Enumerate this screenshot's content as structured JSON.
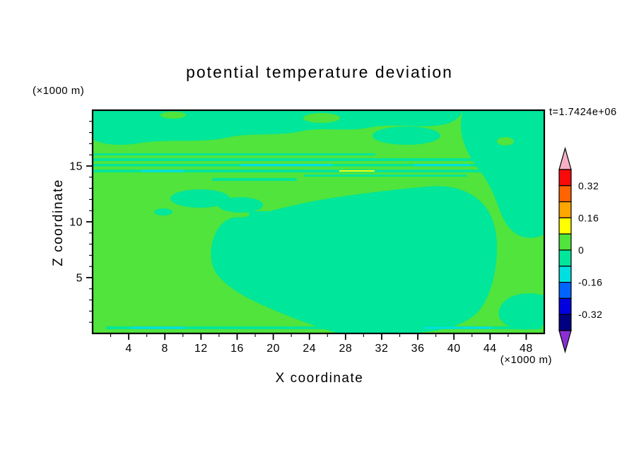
{
  "title": "potential temperature deviation",
  "time_label": "t=1.7424e+06",
  "axes": {
    "x": {
      "label": "X coordinate",
      "unit": "(×1000 m)",
      "range": [
        0,
        50
      ],
      "ticks": [
        "4",
        "8",
        "12",
        "16",
        "20",
        "24",
        "28",
        "32",
        "36",
        "40",
        "44",
        "48"
      ],
      "minor_step": 2
    },
    "y": {
      "label": "Z coordinate",
      "unit": "(×1000 m)",
      "range": [
        0,
        20
      ],
      "ticks": [
        "5",
        "10",
        "15"
      ],
      "minor_step": 1
    }
  },
  "palette": {
    "field-bg": "#50E43C",
    "field-neg": "#00E69A",
    "field-cyan": "#00E0E0",
    "field-yellow": "#FFFF00",
    "plot-border": "#000000"
  },
  "colorbar": {
    "over_color": "#F6AFC4",
    "under_color": "#8A30D0",
    "segments": [
      {
        "min": "0.32",
        "max": "0.4",
        "color": "#FA0A0A"
      },
      {
        "min": "0.24",
        "max": "0.32",
        "color": "#FF6400"
      },
      {
        "min": "0.16",
        "max": "0.24",
        "color": "#FFA500"
      },
      {
        "min": "0.08",
        "max": "0.16",
        "color": "#FFFF00"
      },
      {
        "min": "0",
        "max": "0.08",
        "color": "#50E43C"
      },
      {
        "min": "-0.08",
        "max": "0",
        "color": "#00E69A"
      },
      {
        "min": "-0.16",
        "max": "-0.08",
        "color": "#00E0E0"
      },
      {
        "min": "-0.24",
        "max": "-0.16",
        "color": "#0064FF"
      },
      {
        "min": "-0.32",
        "max": "-0.24",
        "color": "#0000E0"
      },
      {
        "min": "-0.4",
        "max": "-0.32",
        "color": "#000080"
      }
    ],
    "labels": [
      {
        "text": "0.32",
        "boundary": 1
      },
      {
        "text": "0.16",
        "boundary": 3
      },
      {
        "text": "0",
        "boundary": 5
      },
      {
        "text": "-0.16",
        "boundary": 7
      },
      {
        "text": "-0.32",
        "boundary": 9
      }
    ]
  },
  "chart_data": {
    "type": "contour",
    "title": "potential temperature deviation",
    "annotation": "t=1.7424e+06",
    "xlabel": "X coordinate (×1000 m)",
    "ylabel": "Z coordinate (×1000 m)",
    "xlim": [
      0,
      50
    ],
    "ylim": [
      0,
      20
    ],
    "x_ticks": [
      4,
      8,
      12,
      16,
      20,
      24,
      28,
      32,
      36,
      40,
      44,
      48
    ],
    "y_ticks": [
      5,
      10,
      15
    ],
    "contour_interval": 0.08,
    "levels": [
      -0.4,
      -0.32,
      -0.24,
      -0.16,
      -0.08,
      0,
      0.08,
      0.16,
      0.24,
      0.32,
      0.4
    ],
    "labeled_levels": [
      -0.32,
      -0.16,
      0,
      0.16,
      0.32
    ],
    "legend_position": "right",
    "grid": false,
    "field_summary": [
      {
        "region": "most of the domain (background)",
        "value_range": [
          0,
          0.08
        ],
        "color": "#50E43C"
      },
      {
        "region": "upper band z≈17–20 across x≈0–40 and upper-right column x≈41–50 down to z≈9",
        "value_range": [
          -0.08,
          0
        ],
        "color": "#00E69A"
      },
      {
        "region": "large central plume x≈13–45, z≈0–13",
        "value_range": [
          -0.08,
          0
        ],
        "color": "#00E69A"
      },
      {
        "region": "thin horizontal wave layers near z≈14–16 spanning full width",
        "value_range": [
          -0.16,
          0
        ],
        "color": "#00E69A / #00E0E0"
      },
      {
        "region": "thin near-surface layer z≈0.3–0.6 with cyan streaks",
        "value_range": [
          -0.16,
          0
        ],
        "color": "#00E69A / #00E0E0"
      },
      {
        "region": "small blobs x≈8–24 near z≈11–12 and bottom-right blob x≈45–50, z≈1–3.5",
        "value_range": [
          -0.08,
          0
        ],
        "color": "#00E69A"
      }
    ]
  }
}
